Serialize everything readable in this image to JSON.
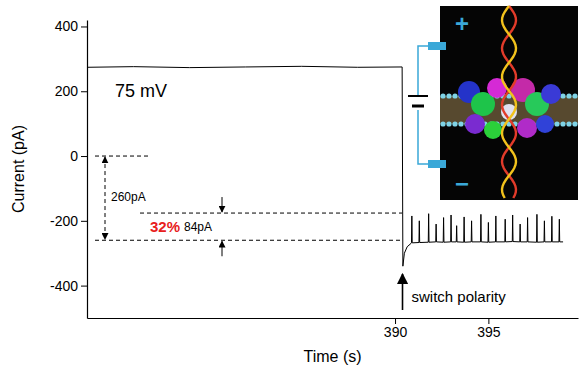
{
  "chart_data": {
    "type": "line",
    "x_label": "Time (s)",
    "y_label": "Current (pA)",
    "color": "#000000",
    "xlim": [
      373.5,
      399.8
    ],
    "ylim": [
      -500,
      420
    ],
    "xticks": [
      390,
      395
    ],
    "yticks": [
      -400,
      -200,
      0,
      200,
      400
    ],
    "reference_lines": [
      0,
      -260,
      -176
    ],
    "annotations": {
      "voltage": "75 mV",
      "total_current": "260pA",
      "ratio": "32%",
      "blockade": "84pA",
      "event": "switch polarity",
      "positive": "+",
      "negative": "−"
    },
    "x": [
      373.5,
      376,
      379,
      382,
      385,
      388,
      390.38,
      390.42,
      390.5,
      390.65,
      390.85,
      390.88,
      390.9,
      390.92,
      391.28,
      391.3,
      391.32,
      391.78,
      391.8,
      391.82,
      392.18,
      392.2,
      392.22,
      392.58,
      392.6,
      392.62,
      392.98,
      393.0,
      393.02,
      393.28,
      393.3,
      393.32,
      393.68,
      393.7,
      393.72,
      394.08,
      394.1,
      394.12,
      394.58,
      394.6,
      394.62,
      394.98,
      395.0,
      395.02,
      395.38,
      395.4,
      395.42,
      395.88,
      395.9,
      395.92,
      396.28,
      396.3,
      396.32,
      396.68,
      396.7,
      396.72,
      397.08,
      397.1,
      397.12,
      397.58,
      397.6,
      397.62,
      397.98,
      398.0,
      398.02,
      398.38,
      398.4,
      398.42,
      398.78,
      398.8,
      398.82,
      399.0
    ],
    "values": [
      274,
      276,
      273,
      275,
      277,
      274,
      275,
      -340,
      -300,
      -280,
      -270,
      -268,
      -185,
      -268,
      -267,
      -200,
      -267,
      -266,
      -178,
      -266,
      -265,
      -210,
      -265,
      -266,
      -190,
      -266,
      -265,
      -182,
      -265,
      -265,
      -215,
      -265,
      -266,
      -188,
      -266,
      -265,
      -200,
      -265,
      -265,
      -180,
      -265,
      -266,
      -205,
      -266,
      -265,
      -185,
      -265,
      -265,
      -195,
      -265,
      -264,
      -182,
      -264,
      -265,
      -210,
      -265,
      -265,
      -190,
      -265,
      -266,
      -180,
      -266,
      -265,
      -200,
      -265,
      -265,
      -186,
      -265,
      -265,
      -195,
      -265,
      -265
    ]
  }
}
